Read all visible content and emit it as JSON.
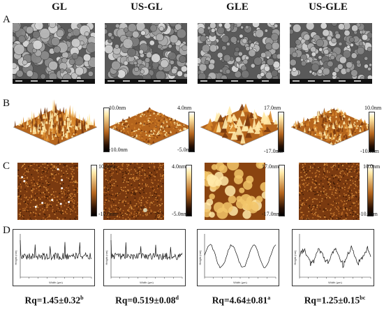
{
  "columns": [
    "GL",
    "US-GL",
    "GLE",
    "US-GLE"
  ],
  "row_labels": [
    "A",
    "B",
    "C",
    "D"
  ],
  "colorbars_3d": [
    {
      "top": "10.0nm",
      "bottom": "-10.0nm"
    },
    {
      "top": "4.0nm",
      "bottom": "-5.0nm"
    },
    {
      "top": "17.0nm",
      "bottom": "-17.0nm"
    },
    {
      "top": "10.0nm",
      "bottom": "-10.0nm"
    }
  ],
  "colorbars_2d": [
    {
      "top": "10.0nm",
      "bottom": "-10.0nm"
    },
    {
      "top": "4.0nm",
      "bottom": "-5.0nm"
    },
    {
      "top": "17.0nm",
      "bottom": "-17.0nm"
    },
    {
      "top": "10.0nm",
      "bottom": "-10.0nm"
    }
  ],
  "rq": [
    {
      "text": "Rq=1.45±0.32",
      "sup": "b"
    },
    {
      "text": "Rq=0.519±0.08",
      "sup": "d"
    },
    {
      "text": "Rq=4.64±0.81",
      "sup": "a"
    },
    {
      "text": "Rq=1.25±0.15",
      "sup": "bc"
    }
  ],
  "profile_labels": {
    "x": "Width (µm)",
    "y": "Height (nm)"
  },
  "colors": {
    "afm_dark": "#2a1205",
    "afm_mid": "#b5651d",
    "afm_light": "#ffe9a8",
    "sem_gray": "#7a7a7a"
  }
}
